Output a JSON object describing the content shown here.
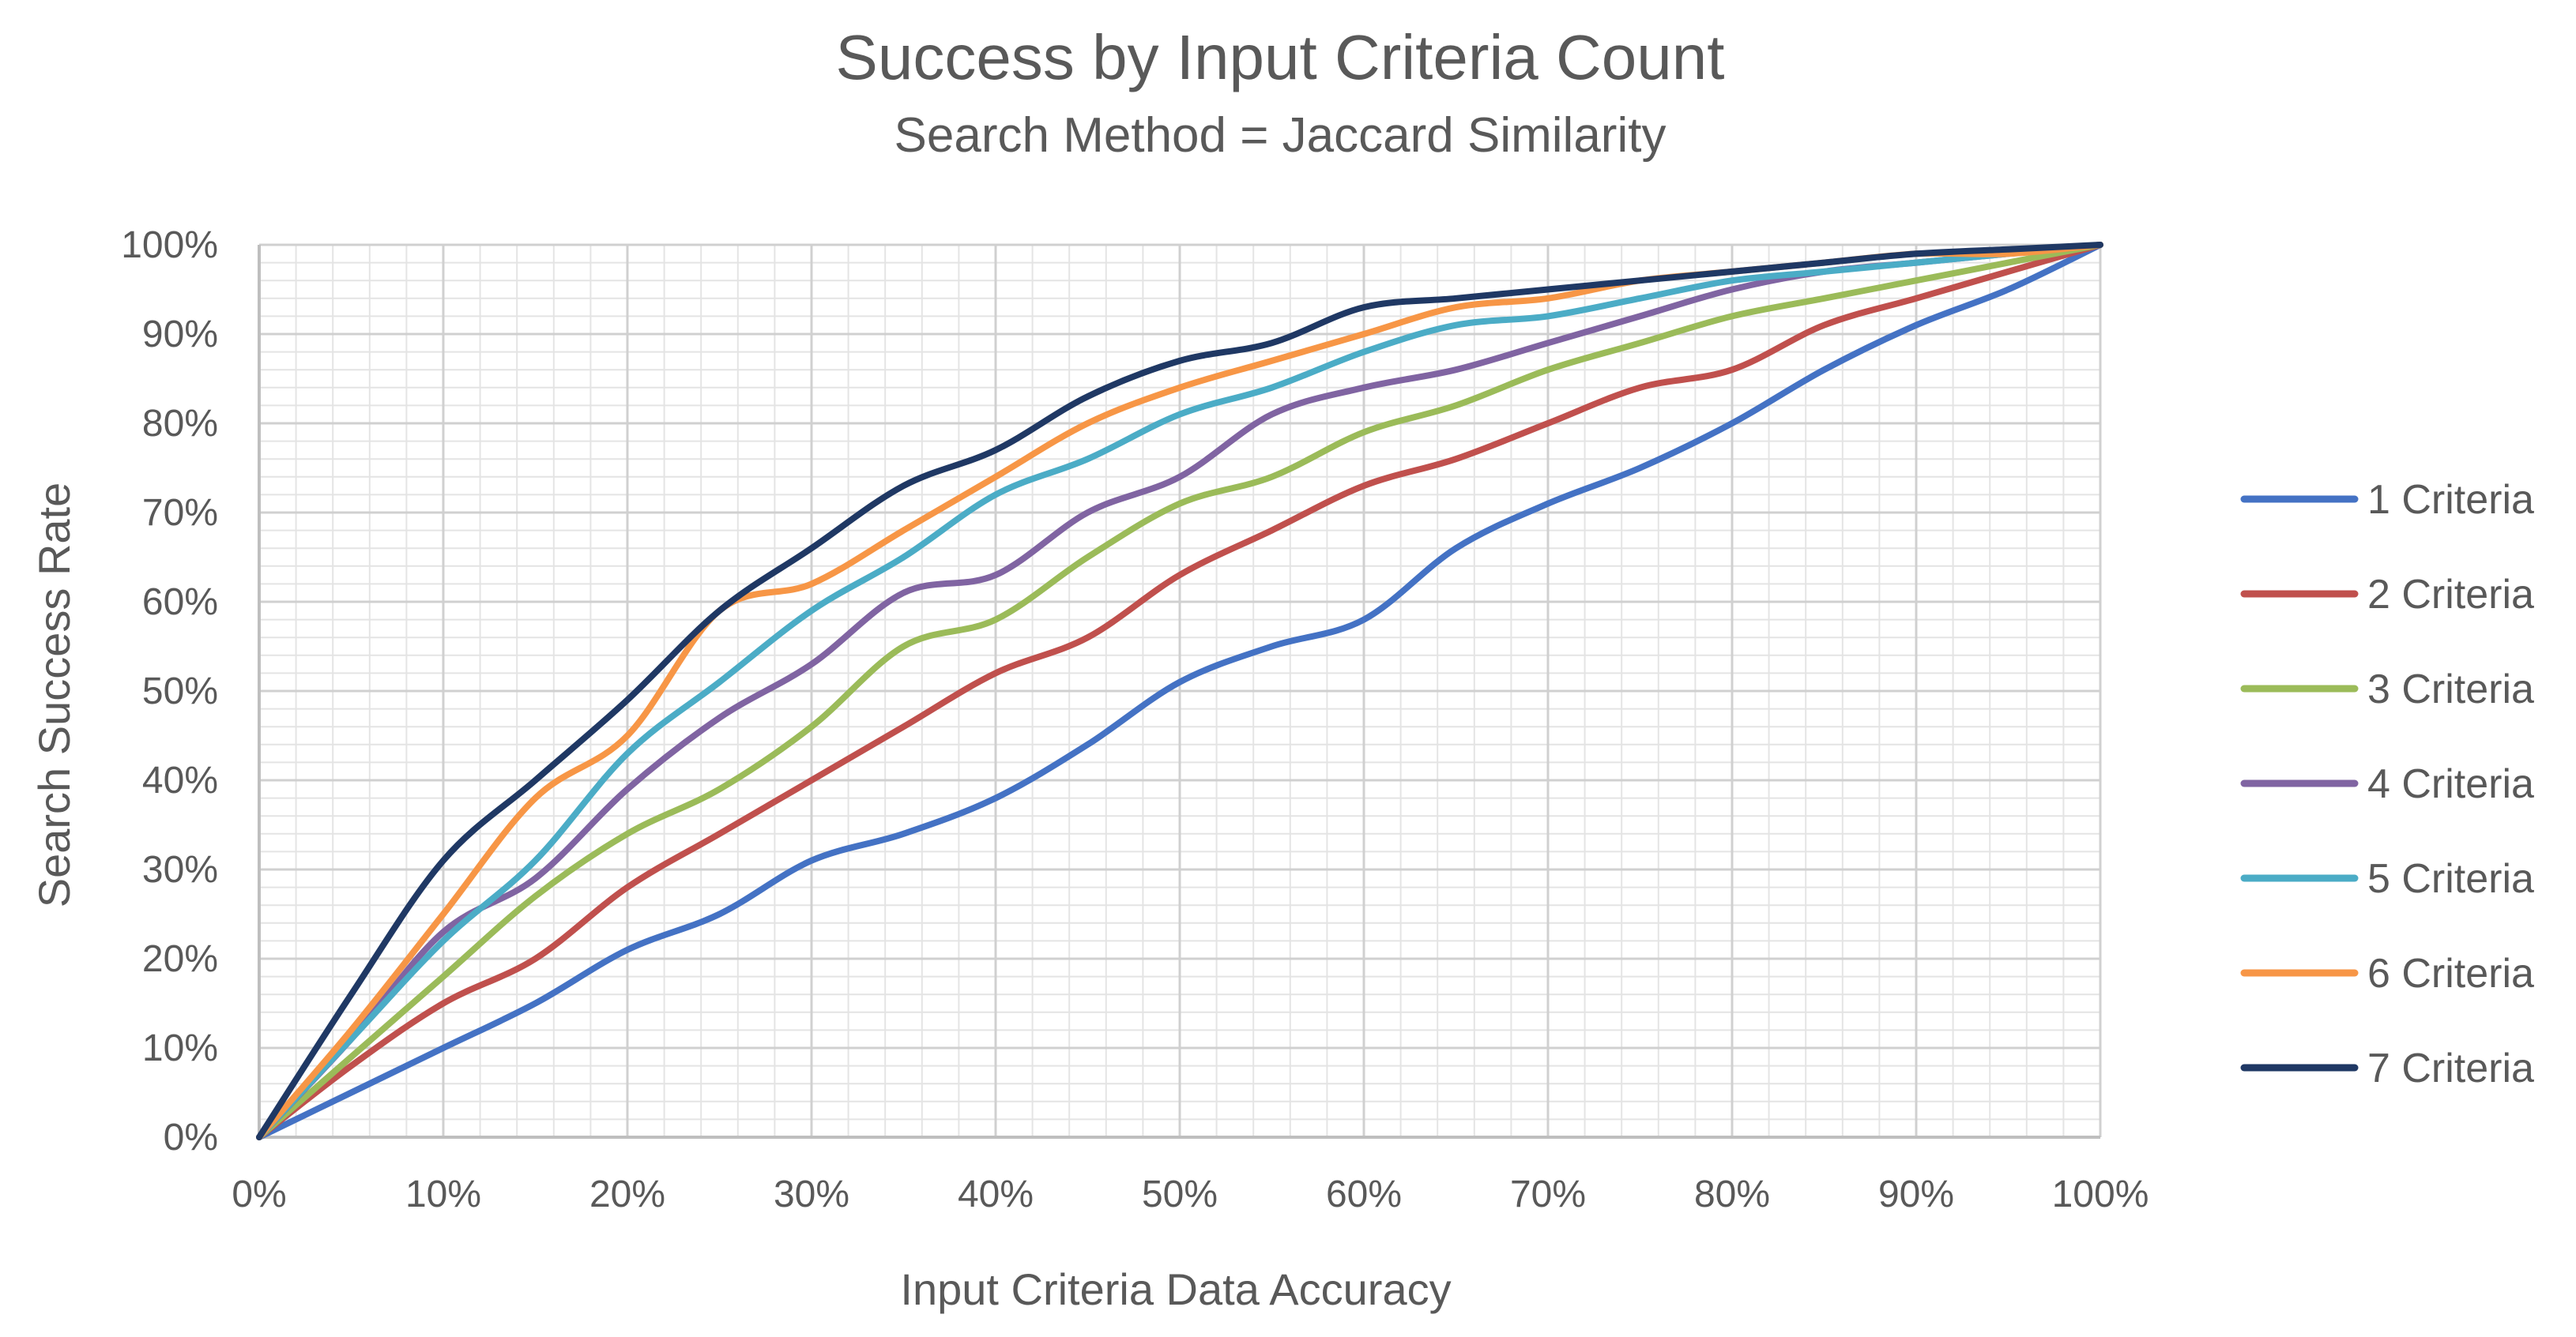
{
  "chart_data": {
    "type": "line",
    "title": "Success by Input Criteria Count",
    "subtitle": "Search Method = Jaccard Similarity",
    "xlabel": "Input Criteria Data Accuracy",
    "ylabel": "Search Success Rate",
    "xlim": [
      0,
      100
    ],
    "ylim": [
      0,
      100
    ],
    "x_ticks": [
      "0%",
      "10%",
      "20%",
      "30%",
      "40%",
      "50%",
      "60%",
      "70%",
      "80%",
      "90%",
      "100%"
    ],
    "y_ticks": [
      "0%",
      "10%",
      "20%",
      "30%",
      "40%",
      "50%",
      "60%",
      "70%",
      "80%",
      "90%",
      "100%"
    ],
    "grid": true,
    "minor_grid": true,
    "legend_position": "right",
    "x": [
      0,
      5,
      10,
      15,
      20,
      25,
      30,
      35,
      40,
      45,
      50,
      55,
      60,
      65,
      70,
      75,
      80,
      85,
      90,
      95,
      100
    ],
    "series": [
      {
        "name": "1 Criteria",
        "color": "#4472C4",
        "values": [
          0,
          5,
          10,
          15,
          21,
          25,
          31,
          34,
          38,
          44,
          51,
          55,
          58,
          66,
          71,
          75,
          80,
          86,
          91,
          95,
          100
        ]
      },
      {
        "name": "2 Criteria",
        "color": "#C0504D",
        "values": [
          0,
          8,
          15,
          20,
          28,
          34,
          40,
          46,
          52,
          56,
          63,
          68,
          73,
          76,
          80,
          84,
          86,
          91,
          94,
          97,
          100
        ]
      },
      {
        "name": "3 Criteria",
        "color": "#9BBB59",
        "values": [
          0,
          9,
          18,
          27,
          34,
          39,
          46,
          55,
          58,
          65,
          71,
          74,
          79,
          82,
          86,
          89,
          92,
          94,
          96,
          98,
          100
        ]
      },
      {
        "name": "4 Criteria",
        "color": "#8064A2",
        "values": [
          0,
          11,
          23,
          29,
          39,
          47,
          53,
          61,
          63,
          70,
          74,
          81,
          84,
          86,
          89,
          92,
          95,
          97,
          98,
          99,
          100
        ]
      },
      {
        "name": "5 Criteria",
        "color": "#4BACC6",
        "values": [
          0,
          11,
          22,
          31,
          43,
          51,
          59,
          65,
          72,
          76,
          81,
          84,
          88,
          91,
          92,
          94,
          96,
          97,
          98,
          99,
          100
        ]
      },
      {
        "name": "6 Criteria",
        "color": "#F79646",
        "values": [
          0,
          12,
          25,
          38,
          45,
          59,
          62,
          68,
          74,
          80,
          84,
          87,
          90,
          93,
          94,
          96,
          97,
          98,
          99,
          99,
          100
        ]
      },
      {
        "name": "7 Criteria",
        "color": "#1F3864",
        "values": [
          0,
          16,
          31,
          40,
          49,
          59,
          66,
          73,
          77,
          83,
          87,
          89,
          93,
          94,
          95,
          96,
          97,
          98,
          99,
          99.5,
          100
        ]
      }
    ]
  }
}
